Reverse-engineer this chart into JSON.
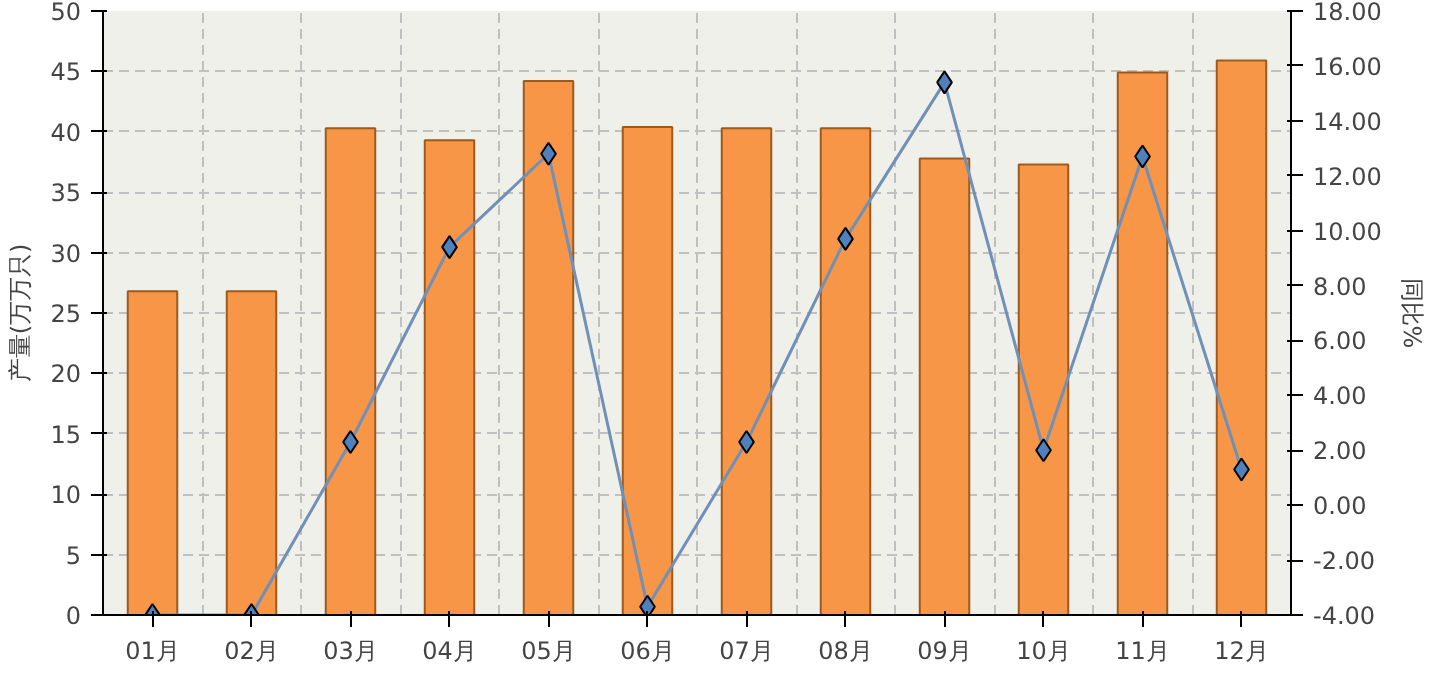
{
  "chart_data": {
    "type": "bar",
    "categories": [
      "01月",
      "02月",
      "03月",
      "04月",
      "05月",
      "06月",
      "07月",
      "08月",
      "09月",
      "10月",
      "11月",
      "12月"
    ],
    "ylabel": "产量(万万只)",
    "y2label": "同比%",
    "series": [
      {
        "color": "#f79646",
        "values": [
          26.8,
          26.8,
          40.3,
          39.3,
          44.2,
          40.4,
          40.3,
          40.3,
          37.8,
          37.3,
          44.9,
          45.9
        ]
      },
      {
        "type": "line",
        "axis": "y2",
        "color": "#4f81bd",
        "marker": "diamond",
        "values": [
          -4.0,
          -4.0,
          2.3,
          9.4,
          12.8,
          -3.7,
          2.3,
          9.7,
          15.4,
          2.0,
          12.7,
          1.3
        ]
      }
    ],
    "ylim": [
      0,
      50
    ],
    "yticks": [
      0,
      5,
      10,
      15,
      20,
      25,
      30,
      35,
      40,
      45,
      50
    ],
    "y2lim": [
      -4,
      18
    ],
    "y2ticks": [
      {
        "value": -4,
        "label": "-4.00"
      },
      {
        "value": -2,
        "label": "-2.00"
      },
      {
        "value": 0,
        "label": "0.00"
      },
      {
        "value": 2,
        "label": "2.00"
      },
      {
        "value": 4,
        "label": "4.00"
      },
      {
        "value": 6,
        "label": "6.00"
      },
      {
        "value": 8,
        "label": "8.00"
      },
      {
        "value": 10,
        "label": "10.00"
      },
      {
        "value": 12,
        "label": "12.00"
      },
      {
        "value": 14,
        "label": "14.00"
      },
      {
        "value": 16,
        "label": "16.00"
      },
      {
        "value": 18,
        "label": "18.00"
      }
    ],
    "grid": true,
    "line_style": "solid"
  }
}
